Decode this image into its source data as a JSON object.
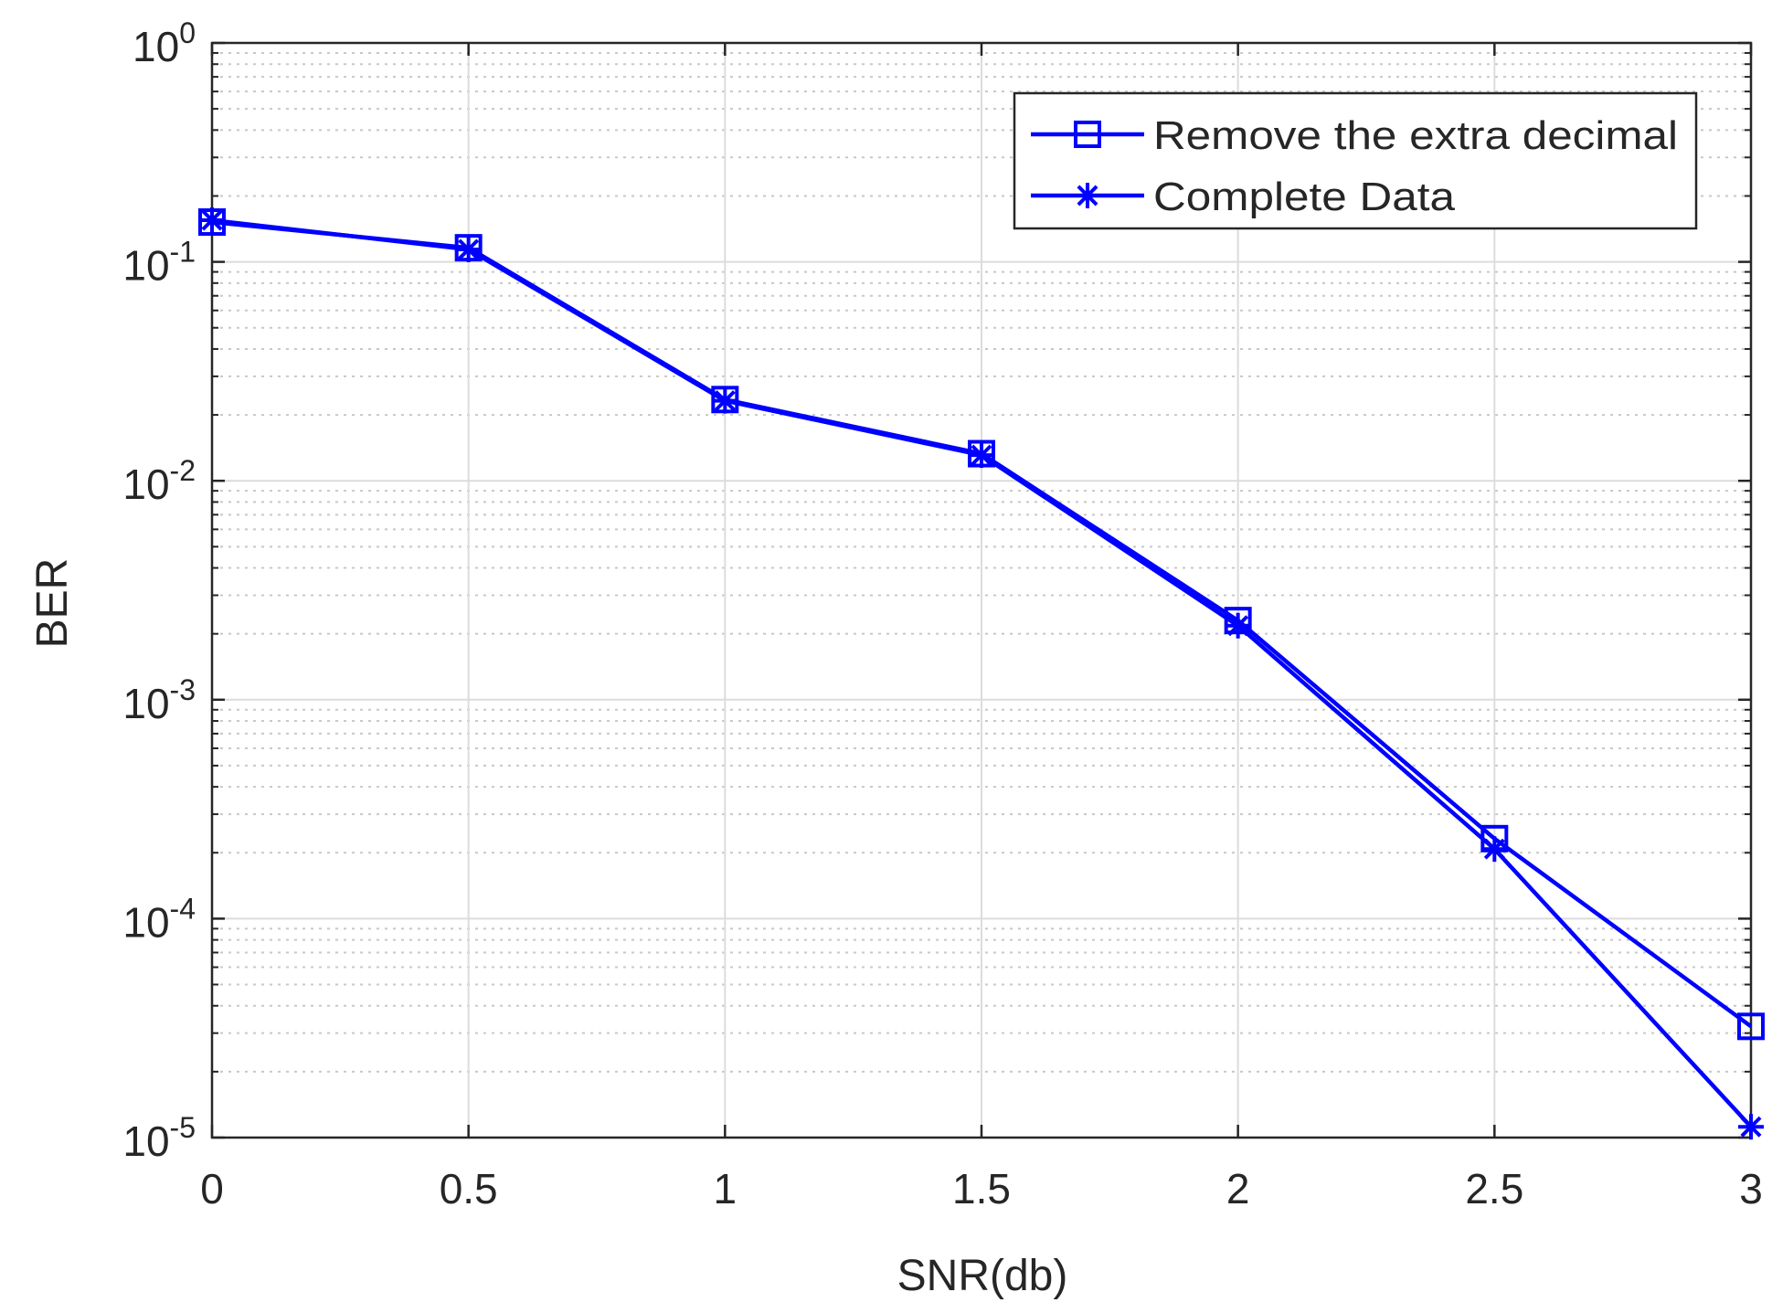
{
  "chart_data": {
    "type": "line",
    "xlabel": "SNR(db)",
    "ylabel": "BER",
    "x_scale": "linear",
    "y_scale": "log",
    "xlim": [
      0,
      3
    ],
    "ylim": [
      1e-05,
      1
    ],
    "x_ticks": [
      {
        "value": 0,
        "label": "0"
      },
      {
        "value": 0.5,
        "label": "0.5"
      },
      {
        "value": 1,
        "label": "1"
      },
      {
        "value": 1.5,
        "label": "1.5"
      },
      {
        "value": 2,
        "label": "2"
      },
      {
        "value": 2.5,
        "label": "2.5"
      },
      {
        "value": 3,
        "label": "3"
      }
    ],
    "y_ticks": [
      {
        "value": 1,
        "base": "10",
        "exp": "0"
      },
      {
        "value": 0.1,
        "base": "10",
        "exp": "-1"
      },
      {
        "value": 0.01,
        "base": "10",
        "exp": "-2"
      },
      {
        "value": 0.001,
        "base": "10",
        "exp": "-3"
      },
      {
        "value": 0.0001,
        "base": "10",
        "exp": "-4"
      },
      {
        "value": 1e-05,
        "base": "10",
        "exp": "-5"
      }
    ],
    "grid": true,
    "minor_grid": true,
    "legend_position": "top-right",
    "x": [
      0,
      0.5,
      1,
      1.5,
      2,
      2.5,
      3
    ],
    "series": [
      {
        "name": "Remove the extra decimal",
        "marker": "square",
        "color": "#0000ff",
        "values": [
          0.152,
          0.116,
          0.0235,
          0.0133,
          0.0023,
          0.000232,
          3.22e-05
        ]
      },
      {
        "name": "Complete Data",
        "marker": "asterisk",
        "color": "#0000ff",
        "values": [
          0.155,
          0.114,
          0.0232,
          0.0131,
          0.00218,
          0.000208,
          1.12e-05
        ]
      }
    ]
  }
}
